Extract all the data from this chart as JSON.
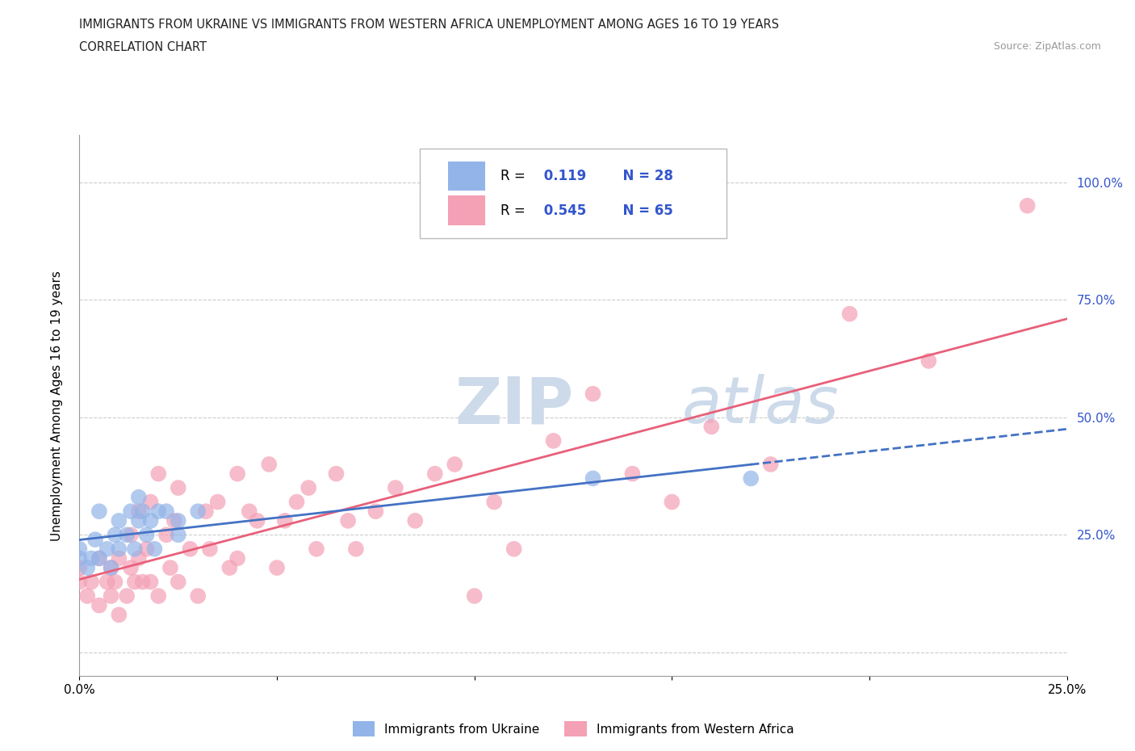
{
  "title_line1": "IMMIGRANTS FROM UKRAINE VS IMMIGRANTS FROM WESTERN AFRICA UNEMPLOYMENT AMONG AGES 16 TO 19 YEARS",
  "title_line2": "CORRELATION CHART",
  "source_text": "Source: ZipAtlas.com",
  "ylabel": "Unemployment Among Ages 16 to 19 years",
  "xmin": 0.0,
  "xmax": 0.25,
  "ymin": -0.05,
  "ymax": 1.1,
  "x_ticks": [
    0.0,
    0.05,
    0.1,
    0.15,
    0.2,
    0.25
  ],
  "x_tick_labels": [
    "0.0%",
    "",
    "",
    "",
    "",
    "25.0%"
  ],
  "y_ticks": [
    0.0,
    0.25,
    0.5,
    0.75,
    1.0
  ],
  "y_tick_labels_right": [
    "",
    "25.0%",
    "50.0%",
    "75.0%",
    "100.0%"
  ],
  "ukraine_R": 0.119,
  "ukraine_N": 28,
  "western_africa_R": 0.545,
  "western_africa_N": 65,
  "ukraine_color": "#92b4e8",
  "western_africa_color": "#f4a0b5",
  "ukraine_line_color": "#4472c4",
  "western_africa_line_color": "#e8607a",
  "background_color": "#ffffff",
  "watermark_color": "#cddaea",
  "grid_color": "#cccccc",
  "legend_R_color": "#3355cc",
  "ukraine_scatter_x": [
    0.0,
    0.0,
    0.002,
    0.003,
    0.004,
    0.005,
    0.005,
    0.007,
    0.008,
    0.009,
    0.01,
    0.01,
    0.012,
    0.013,
    0.014,
    0.015,
    0.015,
    0.016,
    0.017,
    0.018,
    0.019,
    0.02,
    0.022,
    0.025,
    0.025,
    0.03,
    0.13,
    0.17
  ],
  "ukraine_scatter_y": [
    0.2,
    0.22,
    0.18,
    0.2,
    0.24,
    0.2,
    0.3,
    0.22,
    0.18,
    0.25,
    0.22,
    0.28,
    0.25,
    0.3,
    0.22,
    0.28,
    0.33,
    0.3,
    0.25,
    0.28,
    0.22,
    0.3,
    0.3,
    0.28,
    0.25,
    0.3,
    0.37,
    0.37
  ],
  "western_africa_scatter_x": [
    0.0,
    0.0,
    0.002,
    0.003,
    0.005,
    0.005,
    0.007,
    0.008,
    0.008,
    0.009,
    0.01,
    0.01,
    0.012,
    0.013,
    0.013,
    0.014,
    0.015,
    0.015,
    0.016,
    0.017,
    0.018,
    0.018,
    0.02,
    0.02,
    0.022,
    0.023,
    0.024,
    0.025,
    0.025,
    0.028,
    0.03,
    0.032,
    0.033,
    0.035,
    0.038,
    0.04,
    0.04,
    0.043,
    0.045,
    0.048,
    0.05,
    0.052,
    0.055,
    0.058,
    0.06,
    0.065,
    0.068,
    0.07,
    0.075,
    0.08,
    0.085,
    0.09,
    0.095,
    0.1,
    0.105,
    0.11,
    0.12,
    0.13,
    0.14,
    0.15,
    0.16,
    0.175,
    0.195,
    0.215,
    0.24
  ],
  "western_africa_scatter_y": [
    0.15,
    0.18,
    0.12,
    0.15,
    0.1,
    0.2,
    0.15,
    0.12,
    0.18,
    0.15,
    0.08,
    0.2,
    0.12,
    0.18,
    0.25,
    0.15,
    0.2,
    0.3,
    0.15,
    0.22,
    0.15,
    0.32,
    0.12,
    0.38,
    0.25,
    0.18,
    0.28,
    0.15,
    0.35,
    0.22,
    0.12,
    0.3,
    0.22,
    0.32,
    0.18,
    0.2,
    0.38,
    0.3,
    0.28,
    0.4,
    0.18,
    0.28,
    0.32,
    0.35,
    0.22,
    0.38,
    0.28,
    0.22,
    0.3,
    0.35,
    0.28,
    0.38,
    0.4,
    0.12,
    0.32,
    0.22,
    0.45,
    0.55,
    0.38,
    0.32,
    0.48,
    0.4,
    0.72,
    0.62,
    0.95
  ]
}
